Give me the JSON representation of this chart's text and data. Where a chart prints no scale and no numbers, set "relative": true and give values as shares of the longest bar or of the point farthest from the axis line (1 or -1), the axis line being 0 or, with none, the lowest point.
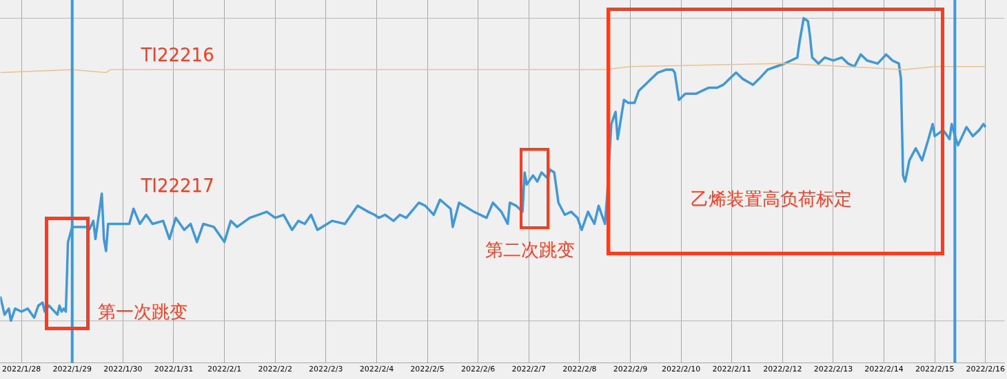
{
  "chart_data": {
    "type": "line",
    "relative": true,
    "grid": true,
    "marker": "none",
    "line_style": "solid",
    "xlim": [
      "2022-01-27T14:00",
      "2022-02-16T09:00"
    ],
    "xticks": [
      {
        "value": "2022-01-28",
        "label": "2022/1/28"
      },
      {
        "value": "2022-01-29",
        "label": "2022/1/29"
      },
      {
        "value": "2022-01-30",
        "label": "2022/1/30"
      },
      {
        "value": "2022-01-31",
        "label": "2022/1/31"
      },
      {
        "value": "2022-02-01",
        "label": "2022/2/1"
      },
      {
        "value": "2022-02-02",
        "label": "2022/2/2"
      },
      {
        "value": "2022-02-03",
        "label": "2022/2/3"
      },
      {
        "value": "2022-02-04",
        "label": "2022/2/4"
      },
      {
        "value": "2022-02-05",
        "label": "2022/2/5"
      },
      {
        "value": "2022-02-06",
        "label": "2022/2/6"
      },
      {
        "value": "2022-02-07",
        "label": "2022/2/7"
      },
      {
        "value": "2022-02-08",
        "label": "2022/2/8"
      },
      {
        "value": "2022-02-09",
        "label": "2022/2/9"
      },
      {
        "value": "2022-02-10",
        "label": "2022/2/10"
      },
      {
        "value": "2022-02-11",
        "label": "2022/2/11"
      },
      {
        "value": "2022-02-12",
        "label": "2022/2/12"
      },
      {
        "value": "2022-02-13",
        "label": "2022/2/13"
      },
      {
        "value": "2022-02-14",
        "label": "2022/2/14"
      },
      {
        "value": "2022-02-15",
        "label": "2022/2/15"
      },
      {
        "value": "2022-02-16",
        "label": "2022/2/16"
      }
    ],
    "series": [
      {
        "name": "TI22216",
        "color": "#e8c38c",
        "x": [
          "2022-01-27T14:00",
          "2022-01-29T00:00",
          "2022-01-29T16:00",
          "2022-01-29T18:00",
          "2022-02-03T00:00",
          "2022-02-08T12:00",
          "2022-02-09T00:00",
          "2022-02-12T00:00",
          "2022-02-14T10:00",
          "2022-02-15T00:00",
          "2022-02-16T00:00"
        ],
        "values": [
          0.82,
          0.83,
          0.82,
          0.83,
          0.83,
          0.83,
          0.84,
          0.85,
          0.83,
          0.84,
          0.84
        ]
      },
      {
        "name": "TI22217",
        "color": "#3f98d7",
        "x": [
          "2022-01-27T14:00",
          "2022-01-27T16:00",
          "2022-01-27T18:00",
          "2022-01-27T19:00",
          "2022-01-27T21:00",
          "2022-01-28T00:00",
          "2022-01-28T03:00",
          "2022-01-28T06:00",
          "2022-01-28T08:00",
          "2022-01-28T10:00",
          "2022-01-28T11:00",
          "2022-01-28T13:00",
          "2022-01-28T17:00",
          "2022-01-28T18:00",
          "2022-01-28T19:00",
          "2022-01-28T20:00",
          "2022-01-28T21:00",
          "2022-01-28T22:00",
          "2022-01-29T00:00",
          "2022-01-29T02:00",
          "2022-01-29T05:00",
          "2022-01-29T07:00",
          "2022-01-29T08:00",
          "2022-01-29T10:00",
          "2022-01-29T11:00",
          "2022-01-29T14:00",
          "2022-01-29T15:00",
          "2022-01-29T16:00",
          "2022-01-29T17:00",
          "2022-01-29T21:00",
          "2022-01-30T03:00",
          "2022-01-30T05:00",
          "2022-01-30T08:00",
          "2022-01-30T11:00",
          "2022-01-30T14:00",
          "2022-01-30T19:00",
          "2022-01-30T22:00",
          "2022-01-31T01:00",
          "2022-01-31T05:00",
          "2022-01-31T08:00",
          "2022-01-31T11:00",
          "2022-01-31T14:00",
          "2022-01-31T19:00",
          "2022-02-01T00:00",
          "2022-02-01T03:00",
          "2022-02-01T06:00",
          "2022-02-01T12:00",
          "2022-02-01T16:00",
          "2022-02-01T20:00",
          "2022-02-02T00:00",
          "2022-02-02T04:00",
          "2022-02-02T08:00",
          "2022-02-02T11:00",
          "2022-02-02T14:00",
          "2022-02-02T17:00",
          "2022-02-02T20:00",
          "2022-02-03T03:00",
          "2022-02-03T09:00",
          "2022-02-03T12:00",
          "2022-02-03T15:00",
          "2022-02-03T20:00",
          "2022-02-03T23:00",
          "2022-02-04T01:00",
          "2022-02-04T04:00",
          "2022-02-04T08:00",
          "2022-02-04T11:00",
          "2022-02-04T14:00",
          "2022-02-04T20:00",
          "2022-02-04T23:00",
          "2022-02-05T03:00",
          "2022-02-05T06:00",
          "2022-02-05T11:00",
          "2022-02-05T12:00",
          "2022-02-05T15:00",
          "2022-02-05T22:00",
          "2022-02-06T04:00",
          "2022-02-06T07:00",
          "2022-02-06T11:00",
          "2022-02-06T14:00",
          "2022-02-06T15:00",
          "2022-02-06T18:00",
          "2022-02-06T21:00",
          "2022-02-06T22:00",
          "2022-02-06T23:00",
          "2022-02-07T02:00",
          "2022-02-07T04:00",
          "2022-02-07T06:00",
          "2022-02-07T09:00",
          "2022-02-07T10:00",
          "2022-02-07T12:00",
          "2022-02-07T14:00",
          "2022-02-07T17:00",
          "2022-02-07T20:00",
          "2022-02-07T23:00",
          "2022-02-08T01:00",
          "2022-02-08T04:00",
          "2022-02-08T07:00",
          "2022-02-08T09:00",
          "2022-02-08T12:00",
          "2022-02-08T13:00",
          "2022-02-08T15:00",
          "2022-02-08T17:00",
          "2022-02-08T18:00",
          "2022-02-08T21:00",
          "2022-02-08T23:00",
          "2022-02-09T02:00",
          "2022-02-09T04:00",
          "2022-02-09T07:00",
          "2022-02-09T10:00",
          "2022-02-09T13:00",
          "2022-02-09T17:00",
          "2022-02-09T20:00",
          "2022-02-09T21:00",
          "2022-02-09T23:00",
          "2022-02-10T02:00",
          "2022-02-10T07:00",
          "2022-02-10T10:00",
          "2022-02-10T13:00",
          "2022-02-10T17:00",
          "2022-02-10T20:00",
          "2022-02-10T23:00",
          "2022-02-11T02:00",
          "2022-02-11T05:00",
          "2022-02-11T10:00",
          "2022-02-11T13:00",
          "2022-02-11T17:00",
          "2022-02-11T21:00",
          "2022-02-12T01:00",
          "2022-02-12T04:00",
          "2022-02-12T07:00",
          "2022-02-12T08:00",
          "2022-02-12T10:00",
          "2022-02-12T12:00",
          "2022-02-12T13:00",
          "2022-02-12T14:00",
          "2022-02-12T17:00",
          "2022-02-12T20:00",
          "2022-02-13T00:00",
          "2022-02-13T04:00",
          "2022-02-13T07:00",
          "2022-02-13T10:00",
          "2022-02-13T13:00",
          "2022-02-13T16:00",
          "2022-02-13T21:00",
          "2022-02-14T01:00",
          "2022-02-14T04:00",
          "2022-02-14T07:00",
          "2022-02-14T08:00",
          "2022-02-14T09:00",
          "2022-02-14T10:00",
          "2022-02-14T12:00",
          "2022-02-14T15:00",
          "2022-02-14T18:00",
          "2022-02-14T21:00",
          "2022-02-14T23:00",
          "2022-02-15T00:00",
          "2022-02-15T04:00",
          "2022-02-15T07:00",
          "2022-02-15T08:00",
          "2022-02-15T10:00",
          "2022-02-15T11:00",
          "2022-02-15T15:00",
          "2022-02-15T18:00",
          "2022-02-15T21:00",
          "2022-02-15T23:00",
          "2022-02-16T00:00"
        ],
        "values": [
          0.08,
          0.02,
          0.04,
          0,
          0.04,
          0.03,
          0.04,
          0.01,
          0.05,
          0.06,
          0.03,
          0.05,
          0.02,
          0.05,
          0.03,
          0.04,
          0.03,
          0.26,
          0.31,
          0.31,
          0.31,
          0.31,
          0.3,
          0.33,
          0.27,
          0.42,
          0.27,
          0.23,
          0.32,
          0.32,
          0.32,
          0.37,
          0.32,
          0.35,
          0.32,
          0.33,
          0.27,
          0.34,
          0.3,
          0.32,
          0.26,
          0.32,
          0.31,
          0.26,
          0.33,
          0.31,
          0.34,
          0.35,
          0.36,
          0.34,
          0.35,
          0.3,
          0.33,
          0.32,
          0.35,
          0.3,
          0.33,
          0.32,
          0.35,
          0.38,
          0.36,
          0.35,
          0.34,
          0.35,
          0.33,
          0.35,
          0.34,
          0.39,
          0.38,
          0.35,
          0.4,
          0.37,
          0.31,
          0.39,
          0.36,
          0.34,
          0.39,
          0.36,
          0.32,
          0.39,
          0.38,
          0.36,
          0.49,
          0.45,
          0.48,
          0.46,
          0.49,
          0.47,
          0.5,
          0.49,
          0.39,
          0.35,
          0.36,
          0.34,
          0.3,
          0.36,
          0.32,
          0.38,
          0.32,
          0.41,
          0.65,
          0.69,
          0.6,
          0.73,
          0.72,
          0.72,
          0.76,
          0.78,
          0.8,
          0.82,
          0.83,
          0.83,
          0.82,
          0.73,
          0.75,
          0.75,
          0.76,
          0.77,
          0.77,
          0.78,
          0.8,
          0.82,
          0.8,
          0.78,
          0.8,
          0.83,
          0.84,
          0.85,
          0.86,
          0.87,
          0.92,
          1,
          0.99,
          0.94,
          0.87,
          0.85,
          0.87,
          0.86,
          0.87,
          0.85,
          0.84,
          0.88,
          0.86,
          0.85,
          0.88,
          0.86,
          0.85,
          0.8,
          0.48,
          0.46,
          0.53,
          0.57,
          0.53,
          0.6,
          0.65,
          0.61,
          0.63,
          0.6,
          0.65,
          0.6,
          0.58,
          0.64,
          0.61,
          0.63,
          0.65,
          0.64
        ]
      }
    ],
    "ref_lines": [
      {
        "axis": "x",
        "value": "2022-01-29",
        "color": "#3f98d7"
      },
      {
        "axis": "x",
        "value": "2022-02-15T09:30",
        "color": "#3f98d7"
      }
    ],
    "annotations": [
      "第一次跳变",
      "第二次跳变",
      "乙烯装置高负荷标定"
    ]
  }
}
